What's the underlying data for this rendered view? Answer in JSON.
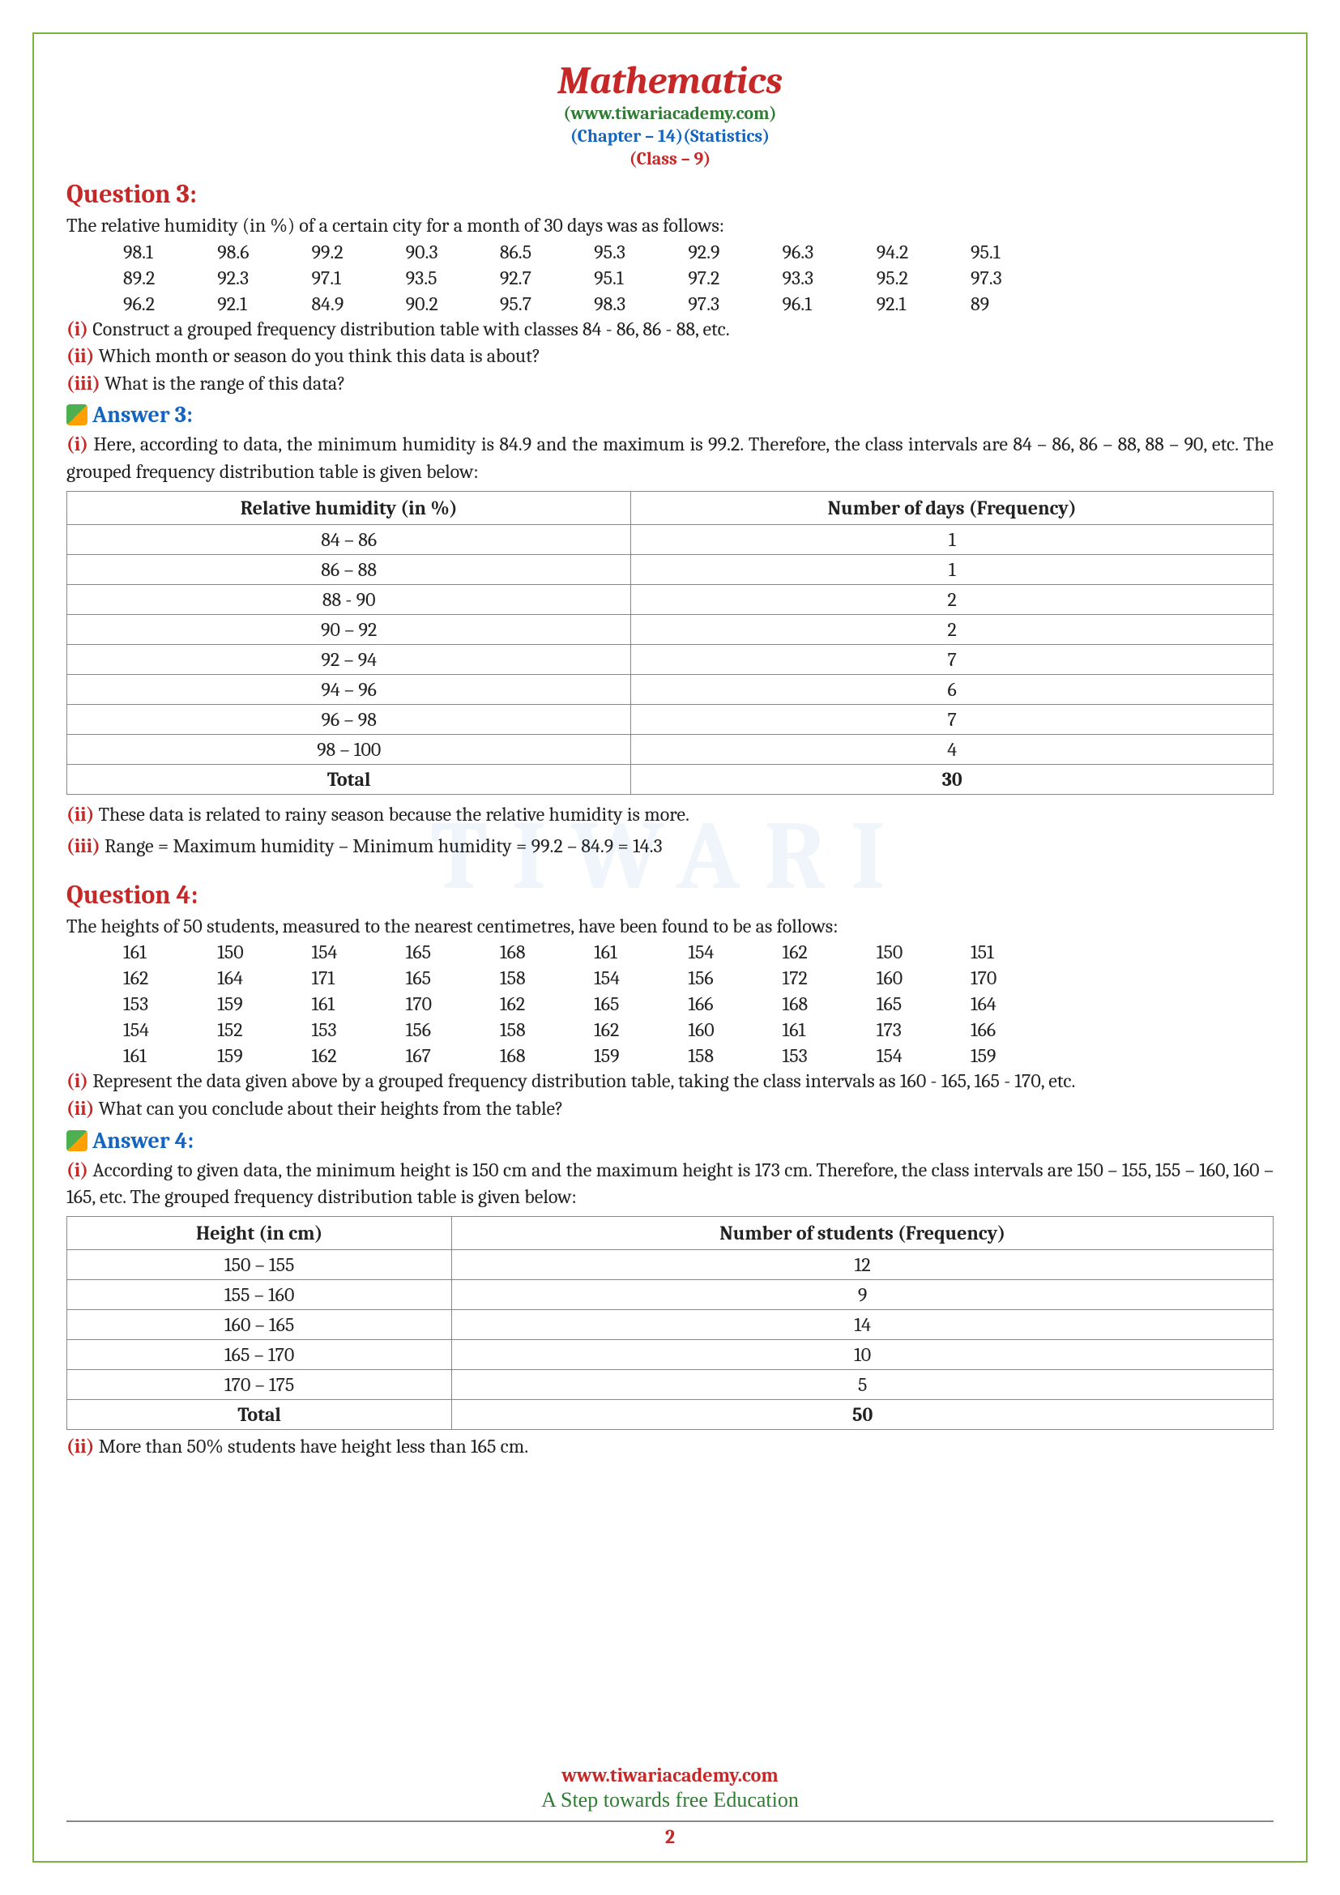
{
  "header": {
    "title": "Mathematics",
    "website": "(www.tiwariacademy.com)",
    "chapter": "(Chapter – 14)(Statistics)",
    "class": "(Class – 9)"
  },
  "q3": {
    "heading": "Question 3:",
    "intro": "The relative humidity (in %) of a certain city for a month of 30 days was as follows:",
    "data": [
      "98.1",
      "98.6",
      "99.2",
      "90.3",
      "86.5",
      "95.3",
      "92.9",
      "96.3",
      "94.2",
      "95.1",
      "89.2",
      "92.3",
      "97.1",
      "93.5",
      "92.7",
      "95.1",
      "97.2",
      "93.3",
      "95.2",
      "97.3",
      "96.2",
      "92.1",
      "84.9",
      "90.2",
      "95.7",
      "98.3",
      "97.3",
      "96.1",
      "92.1",
      "89"
    ],
    "parts": {
      "i": " Construct a grouped frequency distribution table with classes 84 - 86, 86 - 88, etc.",
      "ii": " Which month or season do you think this data is about?",
      "iii": " What is the range of this data?"
    },
    "answer_heading": "Answer 3:",
    "ans_i": " Here, according to data, the minimum humidity is 84.9 and the maximum is 99.2. Therefore, the class intervals are 84 – 86, 86 – 88, 88 – 90, etc. The grouped frequency distribution table is given below:",
    "table": {
      "col1": "Relative humidity (in %)",
      "col2": "Number of days (Frequency)",
      "rows": [
        {
          "c1": "84 – 86",
          "c2": "1"
        },
        {
          "c1": "86 – 88",
          "c2": "1"
        },
        {
          "c1": "88 - 90",
          "c2": "2"
        },
        {
          "c1": "90 – 92",
          "c2": "2"
        },
        {
          "c1": "92 – 94",
          "c2": "7"
        },
        {
          "c1": "94 – 96",
          "c2": "6"
        },
        {
          "c1": "96 – 98",
          "c2": "7"
        },
        {
          "c1": "98 – 100",
          "c2": "4"
        }
      ],
      "total_label": "Total",
      "total_value": "30"
    },
    "ans_ii": " These data is related to rainy season because the relative humidity is more.",
    "ans_iii": " Range = Maximum humidity – Minimum humidity = 99.2 – 84.9 = 14.3"
  },
  "q4": {
    "heading": "Question 4:",
    "intro": "The heights of 50 students, measured to the nearest centimetres, have been found to be as follows:",
    "data": [
      "161",
      "150",
      "154",
      "165",
      "168",
      "161",
      "154",
      "162",
      "150",
      "151",
      "162",
      "164",
      "171",
      "165",
      "158",
      "154",
      "156",
      "172",
      "160",
      "170",
      "153",
      "159",
      "161",
      "170",
      "162",
      "165",
      "166",
      "168",
      "165",
      "164",
      "154",
      "152",
      "153",
      "156",
      "158",
      "162",
      "160",
      "161",
      "173",
      "166",
      "161",
      "159",
      "162",
      "167",
      "168",
      "159",
      "158",
      "153",
      "154",
      "159"
    ],
    "parts": {
      "i": " Represent the data given above by a grouped frequency distribution table, taking the class intervals as 160 - 165, 165 - 170, etc.",
      "ii": " What can you conclude about their heights from the table?"
    },
    "answer_heading": "Answer 4:",
    "ans_i": " According to given data, the minimum height is 150 cm and the maximum height is 173 cm. Therefore, the class intervals are 150 – 155, 155 – 160, 160 – 165, etc. The grouped frequency distribution table is given below:",
    "table": {
      "col1": "Height (in cm)",
      "col2": "Number of students (Frequency)",
      "rows": [
        {
          "c1": "150 – 155",
          "c2": "12"
        },
        {
          "c1": "155 – 160",
          "c2": "9"
        },
        {
          "c1": "160 – 165",
          "c2": "14"
        },
        {
          "c1": "165 – 170",
          "c2": "10"
        },
        {
          "c1": "170 – 175",
          "c2": "5"
        }
      ],
      "total_label": "Total",
      "total_value": "50"
    },
    "ans_ii": " More than 50% students have height less than 165 cm."
  },
  "labels": {
    "i": "(i)",
    "ii": "(ii)",
    "iii": "(iii)"
  },
  "footer": {
    "url": "www.tiwariacademy.com",
    "tagline": "A Step towards free Education"
  },
  "page_number": "2",
  "watermark": "TIWARI"
}
